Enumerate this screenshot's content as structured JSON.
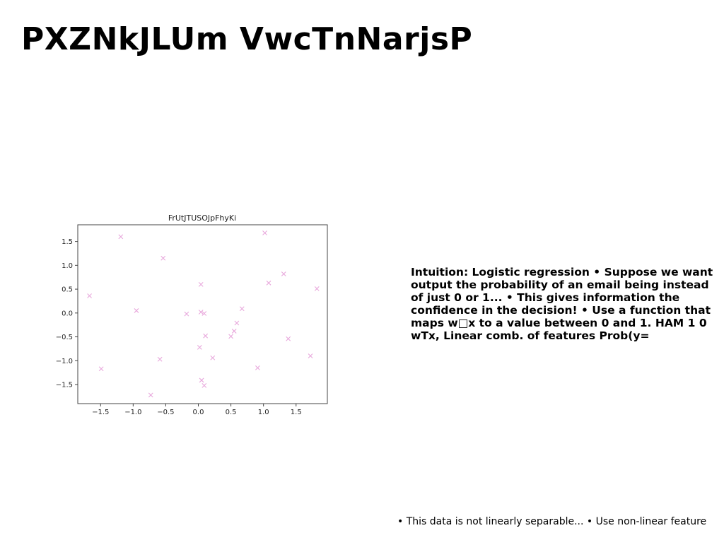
{
  "slide": {
    "title": "PXZNkJLUm VwcTnNarjsP",
    "body_text": "Intuition: Logistic regression • Suppose we want output the probability of an email being instead of just 0 or 1... • This gives information the confidence in the decision! • Use a function that maps w□x to a value between 0 and 1. HAM 1 0 wTx, Linear comb. of features Prob(y=",
    "footer_text": "• This data is not linearly separable... • Use non-linear feature"
  },
  "chart_data": {
    "type": "scatter",
    "title": "FrUtJTUSOJpFhyKi",
    "xlabel": "",
    "ylabel": "",
    "xlim": [
      -1.85,
      1.98
    ],
    "ylim": [
      -1.9,
      1.85
    ],
    "xticks": [
      -1.5,
      -1.0,
      -0.5,
      0.0,
      0.5,
      1.0,
      1.5
    ],
    "yticks": [
      -1.5,
      -1.0,
      -0.5,
      0.0,
      0.5,
      1.0,
      1.5
    ],
    "xtick_labels": [
      "−1.5",
      "−1.0",
      "−0.5",
      "0.0",
      "0.5",
      "1.0",
      "1.5"
    ],
    "ytick_labels": [
      "−1.5",
      "−1.0",
      "−0.5",
      "0.0",
      "0.5",
      "1.0",
      "1.5"
    ],
    "grid": false,
    "marker": "x",
    "color": "#e8a8dc",
    "series": [
      {
        "x": [
          -1.67,
          -1.19,
          -0.54,
          -0.95,
          -0.18,
          -1.49,
          -0.59,
          -0.73,
          0.04,
          0.04,
          0.09,
          0.11,
          0.02,
          0.05,
          0.09,
          0.22,
          0.5,
          0.55,
          0.59,
          0.67,
          0.91,
          1.02,
          1.08,
          1.31,
          1.38,
          1.72,
          1.82
        ],
        "y": [
          0.36,
          1.6,
          1.15,
          0.05,
          -0.02,
          -1.17,
          -0.97,
          -1.72,
          0.6,
          0.02,
          -0.01,
          -0.48,
          -0.72,
          -1.41,
          -1.52,
          -0.94,
          -0.49,
          -0.38,
          -0.21,
          0.09,
          -1.15,
          1.68,
          0.63,
          0.82,
          -0.54,
          -0.9,
          0.51
        ]
      }
    ]
  }
}
